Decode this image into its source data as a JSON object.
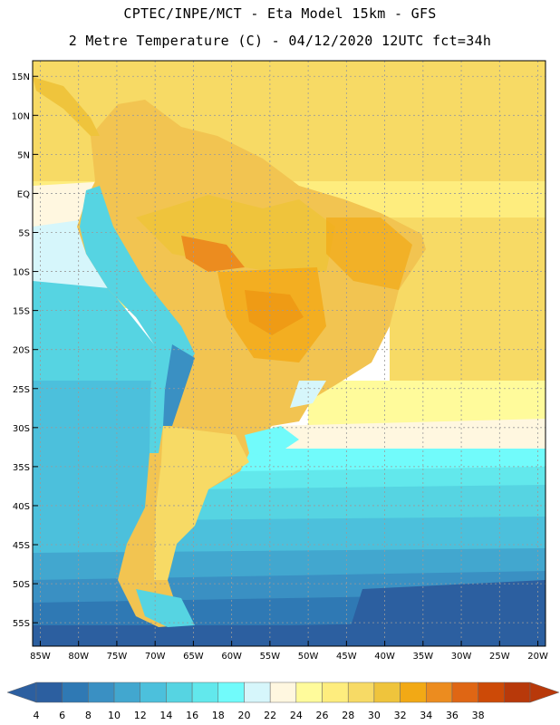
{
  "header": {
    "line1": "CPTEC/INPE/MCT -  Eta Model 15km - GFS",
    "line2": "2 Metre Temperature (C) - 04/12/2020 12UTC fct=34h"
  },
  "map": {
    "lat_labels": [
      "15N",
      "10N",
      "5N",
      "EQ",
      "5S",
      "10S",
      "15S",
      "20S",
      "25S",
      "30S",
      "35S",
      "40S",
      "45S",
      "50S",
      "55S"
    ],
    "lat_values": [
      15,
      10,
      5,
      0,
      -5,
      -10,
      -15,
      -20,
      -25,
      -30,
      -35,
      -40,
      -45,
      -50,
      -55
    ],
    "lon_labels": [
      "85W",
      "80W",
      "75W",
      "70W",
      "65W",
      "60W",
      "55W",
      "50W",
      "45W",
      "40W",
      "35W",
      "30W",
      "25W",
      "20W"
    ],
    "lon_values": [
      -85,
      -80,
      -75,
      -70,
      -65,
      -60,
      -55,
      -50,
      -45,
      -40,
      -35,
      -30,
      -25,
      -20
    ],
    "lat_range": [
      -58,
      17
    ],
    "lon_range": [
      -86,
      -19
    ],
    "field": "2 Metre Temperature",
    "units": "C"
  },
  "colorbar": {
    "labels": [
      "4",
      "6",
      "8",
      "10",
      "12",
      "14",
      "16",
      "18",
      "20",
      "22",
      "24",
      "26",
      "28",
      "30",
      "32",
      "34",
      "36",
      "38"
    ],
    "colors": [
      "#2c5fa0",
      "#2f79b4",
      "#3a90c3",
      "#42a7cf",
      "#4cc0dc",
      "#56d4e2",
      "#62e8ec",
      "#71fbfb",
      "#d6f6fb",
      "#fff7e0",
      "#fffb9b",
      "#feed7e",
      "#f7da65",
      "#efc43c",
      "#f2a915",
      "#ec8c1f",
      "#df6614",
      "#cd4a07",
      "#b8390a"
    ],
    "left_arrow_color": "#2c5fa0",
    "right_arrow_color": "#b8390a"
  }
}
